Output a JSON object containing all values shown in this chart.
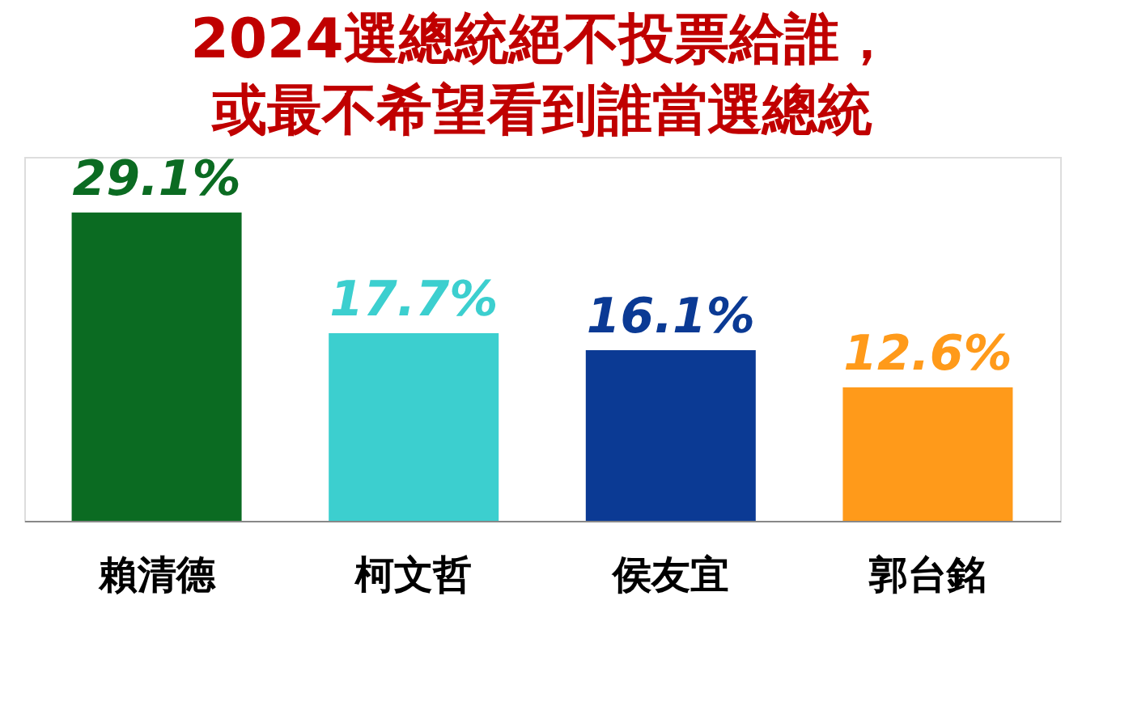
{
  "chart_data": {
    "type": "bar",
    "title": [
      "2024選總統絕不投票給誰，",
      "或最不希望看到誰當選總統"
    ],
    "categories": [
      "賴清德",
      "柯文哲",
      "侯友宜",
      "郭台銘"
    ],
    "values": [
      29.1,
      17.7,
      16.1,
      12.6
    ],
    "colors": [
      "#0b6b22",
      "#3ccfcf",
      "#0b3a94",
      "#ff9a1a"
    ],
    "value_labels": [
      "29.1%",
      "17.7%",
      "16.1%",
      "12.6%"
    ],
    "grid": false,
    "legend": false
  }
}
